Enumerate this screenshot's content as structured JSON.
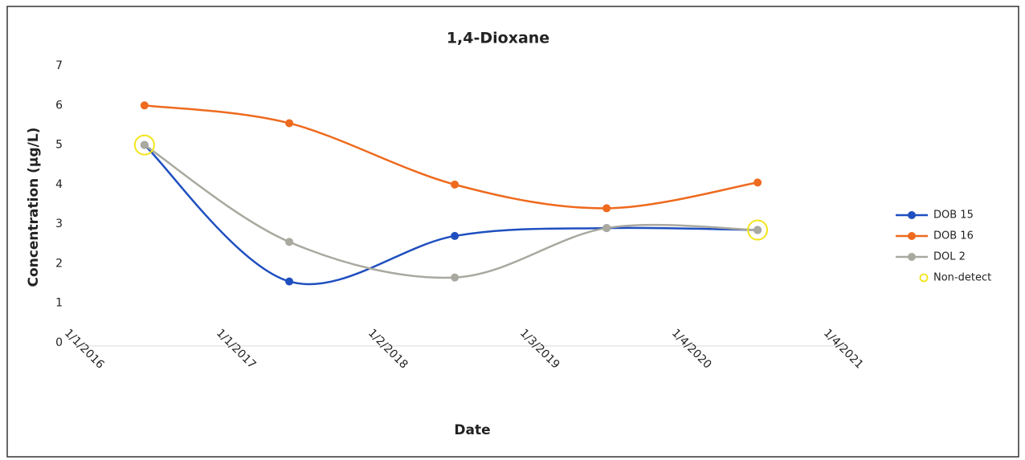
{
  "chart_data": {
    "type": "line",
    "title": "1,4-Dioxane",
    "x_label": "Date",
    "y_label": "Concentration (µg/L)",
    "x": [
      "2016-05-25",
      "2017-05-09",
      "2018-06-12",
      "2019-06-13",
      "2020-06-11"
    ],
    "xlim": [
      "2016-01-01",
      "2021-01-04"
    ],
    "xticks": [
      {
        "value": "2016-01-01",
        "label": "1/1/2016"
      },
      {
        "value": "2017-01-01",
        "label": "1/1/2017"
      },
      {
        "value": "2018-01-02",
        "label": "1/2/2018"
      },
      {
        "value": "2019-01-03",
        "label": "1/3/2019"
      },
      {
        "value": "2020-01-04",
        "label": "1/4/2020"
      },
      {
        "value": "2021-01-04",
        "label": "1/4/2021"
      }
    ],
    "ylim": [
      0,
      7
    ],
    "yticks": [
      0,
      1,
      2,
      3,
      4,
      5,
      6,
      7
    ],
    "smooth": true,
    "legend": "right",
    "series": [
      {
        "name": "DOB 15",
        "color": "#1f4fbf",
        "style": "line",
        "values": [
          5.0,
          1.55,
          2.7,
          2.9,
          2.85
        ]
      },
      {
        "name": "DOB 16",
        "color": "#ee6a1e",
        "style": "line",
        "values": [
          6.0,
          5.55,
          4.0,
          3.4,
          4.05
        ]
      },
      {
        "name": "DOL 2",
        "color": "#a9a9a0",
        "style": "line",
        "values": [
          5.0,
          2.55,
          1.65,
          2.9,
          2.85
        ]
      },
      {
        "name": "Non-detect",
        "color": "#f2e41a",
        "style": "ring",
        "values": [
          5.0,
          null,
          null,
          null,
          2.85
        ]
      }
    ]
  }
}
